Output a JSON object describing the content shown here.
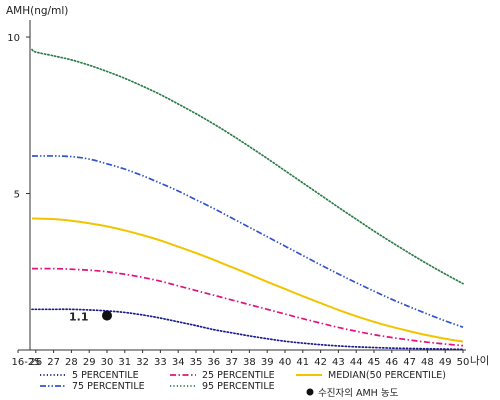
{
  "chart_data": {
    "type": "line",
    "ylabel": "AMH(ng/ml)",
    "xlabel": "나이",
    "ylim": [
      0,
      10.8
    ],
    "yticks": [
      5,
      10
    ],
    "categories": [
      "16-25",
      "26",
      "27",
      "28",
      "29",
      "30",
      "31",
      "32",
      "33",
      "34",
      "35",
      "36",
      "37",
      "38",
      "39",
      "40",
      "41",
      "42",
      "43",
      "44",
      "45",
      "46",
      "47",
      "48",
      "49",
      "50"
    ],
    "series": [
      {
        "name": "5 PERCENTILE",
        "color": "#1a1a8c",
        "dash": "dot",
        "values": [
          1.3,
          1.3,
          1.3,
          1.3,
          1.28,
          1.25,
          1.2,
          1.12,
          1.02,
          0.9,
          0.78,
          0.65,
          0.55,
          0.45,
          0.36,
          0.28,
          0.22,
          0.17,
          0.13,
          0.1,
          0.08,
          0.06,
          0.05,
          0.04,
          0.03,
          0.02
        ]
      },
      {
        "name": "25 PERCENTILE",
        "color": "#e0137f",
        "dash": "dashdot",
        "values": [
          2.6,
          2.6,
          2.6,
          2.58,
          2.55,
          2.5,
          2.42,
          2.32,
          2.2,
          2.05,
          1.9,
          1.75,
          1.6,
          1.45,
          1.3,
          1.15,
          1.0,
          0.86,
          0.72,
          0.6,
          0.49,
          0.4,
          0.32,
          0.25,
          0.19,
          0.14
        ]
      },
      {
        "name": "MEDIAN(50 PERCENTILE)",
        "color": "#f2c400",
        "dash": "solid",
        "values": [
          4.2,
          4.2,
          4.18,
          4.13,
          4.05,
          3.95,
          3.82,
          3.67,
          3.5,
          3.3,
          3.1,
          2.88,
          2.65,
          2.42,
          2.18,
          1.95,
          1.72,
          1.5,
          1.28,
          1.08,
          0.9,
          0.74,
          0.6,
          0.47,
          0.36,
          0.27
        ]
      },
      {
        "name": "75 PERCENTILE",
        "color": "#3355cc",
        "dash": "dashdotdot",
        "values": [
          6.2,
          6.2,
          6.2,
          6.18,
          6.1,
          5.95,
          5.78,
          5.57,
          5.33,
          5.08,
          4.8,
          4.52,
          4.22,
          3.92,
          3.62,
          3.32,
          3.02,
          2.72,
          2.43,
          2.15,
          1.88,
          1.62,
          1.38,
          1.15,
          0.93,
          0.73
        ]
      },
      {
        "name": "95 PERCENTILE",
        "color": "#2e7d4a",
        "dash": "dot",
        "values": [
          9.6,
          9.52,
          9.4,
          9.27,
          9.1,
          8.9,
          8.68,
          8.43,
          8.16,
          7.86,
          7.55,
          7.22,
          6.87,
          6.5,
          6.12,
          5.73,
          5.34,
          4.95,
          4.56,
          4.18,
          3.8,
          3.44,
          3.09,
          2.75,
          2.43,
          2.12
        ]
      }
    ],
    "highlight_point": {
      "name": "수진자의 AMH 농도",
      "x": "30",
      "y": 1.1,
      "label": "1.1"
    },
    "legend": {
      "position": "bottom",
      "columns": 3
    }
  }
}
